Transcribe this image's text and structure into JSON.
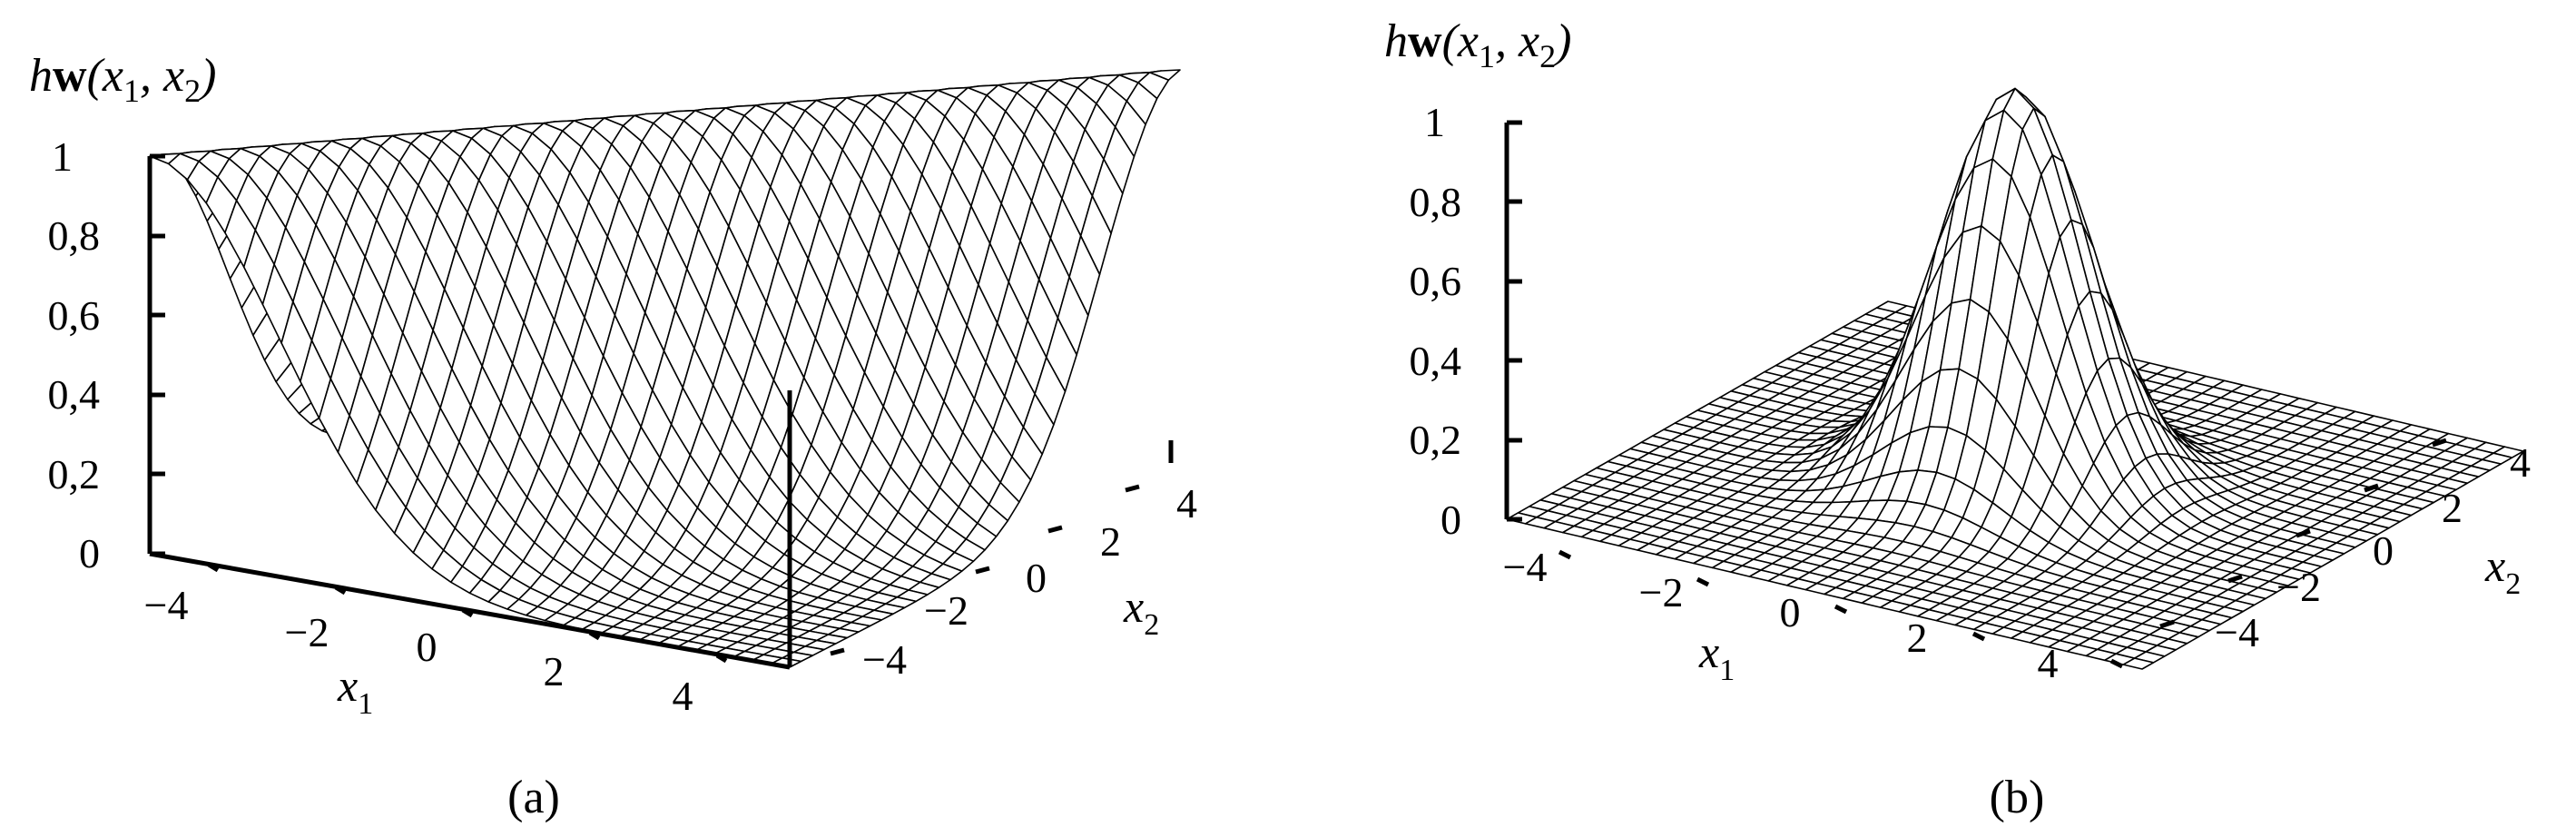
{
  "chart_data": [
    {
      "type": "surface",
      "panel": "a",
      "caption": "(a)",
      "zlabel": {
        "prefix": "h",
        "bold": "w",
        "args": "(x",
        "sub1": "1",
        "mid": ", x",
        "sub2": "2",
        "close": ")"
      },
      "xlabel": {
        "base": "x",
        "sub": "1"
      },
      "ylabel": {
        "base": "x",
        "sub": "2"
      },
      "x_ticks": [
        "−4",
        "−2",
        "0",
        "2",
        "4"
      ],
      "y_ticks": [
        "−4",
        "−2",
        "0",
        "2",
        "4"
      ],
      "z_ticks": [
        "0",
        "0,2",
        "0,4",
        "0,6",
        "0,8",
        "1"
      ],
      "x_range": [
        -5,
        5
      ],
      "y_range": [
        -5,
        5
      ],
      "z_range": [
        0,
        1
      ],
      "shape": "ridge"
    },
    {
      "type": "surface",
      "panel": "b",
      "caption": "(b)",
      "zlabel": {
        "prefix": "h",
        "bold": "w",
        "args": "(x",
        "sub1": "1",
        "mid": ", x",
        "sub2": "2",
        "close": ")"
      },
      "xlabel": {
        "base": "x",
        "sub": "1"
      },
      "ylabel": {
        "base": "x",
        "sub": "2"
      },
      "x_ticks": [
        "−4",
        "−2",
        "0",
        "2",
        "4"
      ],
      "y_ticks": [
        "−4",
        "−2",
        "0",
        "2",
        "4"
      ],
      "z_ticks": [
        "0",
        "0,2",
        "0,4",
        "0,6",
        "0,8",
        "1"
      ],
      "x_range": [
        -5,
        5
      ],
      "y_range": [
        -5,
        5
      ],
      "z_range": [
        0,
        1
      ],
      "shape": "bump"
    }
  ]
}
